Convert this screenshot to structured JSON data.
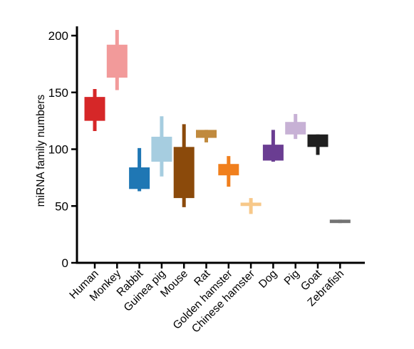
{
  "chart_data": {
    "type": "box",
    "title": "",
    "xlabel": "",
    "ylabel": "miRNA family numbers",
    "ylim": [
      0,
      200
    ],
    "yticks": [
      0,
      50,
      100,
      150,
      200
    ],
    "grid": false,
    "legend": "none",
    "categories": [
      "Human",
      "Monkey",
      "Rabbit",
      "Guinea pig",
      "Mouse",
      "Rat",
      "Golden hamster",
      "Chinese hamster",
      "Dog",
      "Pig",
      "Goat",
      "Zebrafish"
    ],
    "series": [
      {
        "category": "Human",
        "min": 116,
        "q1": 125,
        "q3": 146,
        "max": 153,
        "color": "#d62728"
      },
      {
        "category": "Monkey",
        "min": 152,
        "q1": 163,
        "q3": 192,
        "max": 205,
        "color": "#f29a9a"
      },
      {
        "category": "Rabbit",
        "min": 63,
        "q1": 65,
        "q3": 84,
        "max": 101,
        "color": "#1f77b4"
      },
      {
        "category": "Guinea pig",
        "min": 76,
        "q1": 89,
        "q3": 111,
        "max": 129,
        "color": "#a6cde0"
      },
      {
        "category": "Mouse",
        "min": 49,
        "q1": 57,
        "q3": 102,
        "max": 122,
        "color": "#8b4a0b"
      },
      {
        "category": "Rat",
        "min": 106,
        "q1": 110,
        "q3": 117,
        "max": 117,
        "color": "#c08a3e"
      },
      {
        "category": "Golden hamster",
        "min": 67,
        "q1": 77,
        "q3": 87,
        "max": 94,
        "color": "#f07f1d"
      },
      {
        "category": "Chinese hamster",
        "min": 43,
        "q1": 50,
        "q3": 53,
        "max": 57,
        "color": "#f7c889"
      },
      {
        "category": "Dog",
        "min": 89,
        "q1": 90,
        "q3": 104,
        "max": 117,
        "color": "#6a3d92"
      },
      {
        "category": "Pig",
        "min": 109,
        "q1": 113,
        "q3": 124,
        "max": 131,
        "color": "#c7b1d5"
      },
      {
        "category": "Goat",
        "min": 95,
        "q1": 102,
        "q3": 113,
        "max": 113,
        "color": "#1f1f1f"
      },
      {
        "category": "Zebrafish",
        "min": 35,
        "q1": 35,
        "q3": 38,
        "max": 38,
        "color": "#737373"
      }
    ]
  }
}
